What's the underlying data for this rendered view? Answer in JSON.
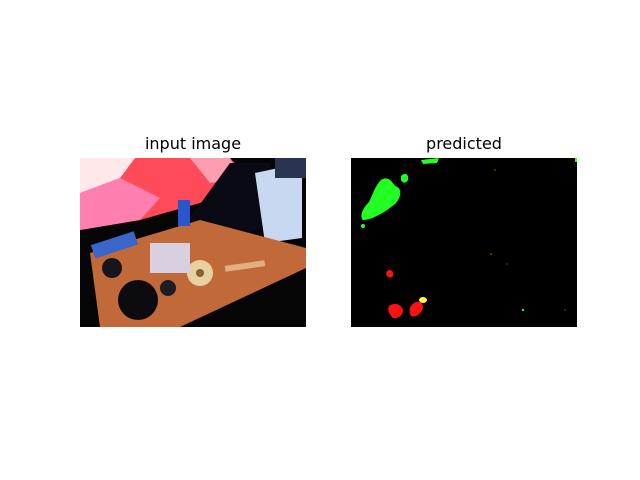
{
  "figure": {
    "panels": [
      {
        "title": "input image"
      },
      {
        "title": "predicted"
      }
    ]
  },
  "colors": {
    "background": "#ffffff",
    "mask_background": "#000000",
    "class_green": "#22ff22",
    "class_red": "#ff1111",
    "class_yellow": "#ffff33"
  }
}
